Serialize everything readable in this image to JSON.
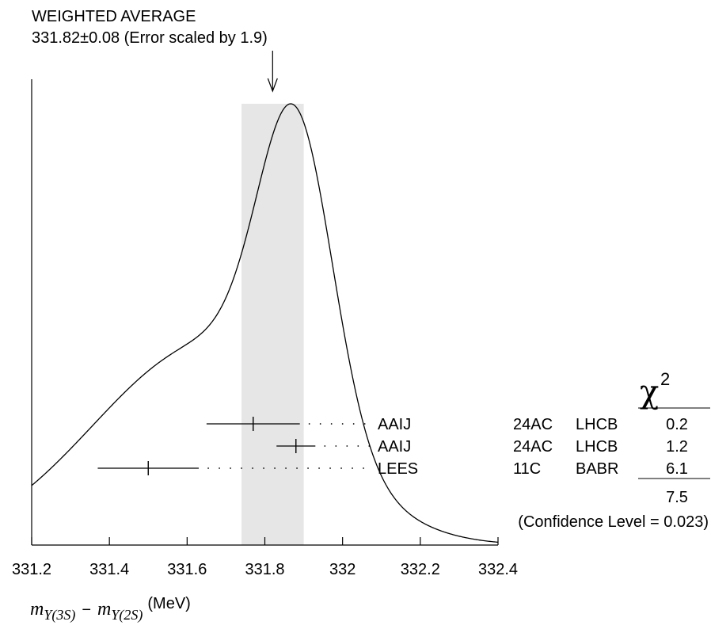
{
  "header": {
    "title": "WEIGHTED AVERAGE",
    "subtitle": "331.82±0.08 (Error scaled by 1.9)"
  },
  "chart_data": {
    "type": "scatter",
    "title": "WEIGHTED AVERAGE",
    "subtitle": "331.82±0.08 (Error scaled by 1.9)",
    "xlim": [
      331.2,
      332.4
    ],
    "x_ticks": [
      "331.2",
      "331.4",
      "331.6",
      "331.8",
      "332",
      "332.2",
      "332.4"
    ],
    "average": 331.82,
    "average_error": 0.08,
    "measurements": [
      {
        "label": "AAIJ",
        "ref": "24AC",
        "exp": "LHCB",
        "value": 331.77,
        "err": 0.12,
        "chi2": "0.2"
      },
      {
        "label": "AAIJ",
        "ref": "24AC",
        "exp": "LHCB",
        "value": 331.88,
        "err": 0.05,
        "chi2": "1.2"
      },
      {
        "label": "LEES",
        "ref": "11C",
        "exp": "BABR",
        "value": 331.5,
        "err": 0.13,
        "chi2": "6.1"
      }
    ],
    "chi2_symbol": "χ",
    "chi2_power": "2",
    "chi2_total": "7.5",
    "confidence_level": "(Confidence Level = 0.023)",
    "xlabel": {
      "m1": "m",
      "sub1": "Υ(3S)",
      "minus": "−",
      "m2": "m",
      "sub2": "Υ(2S)",
      "unit": "(MeV)"
    },
    "grid": false,
    "legend": "none"
  }
}
